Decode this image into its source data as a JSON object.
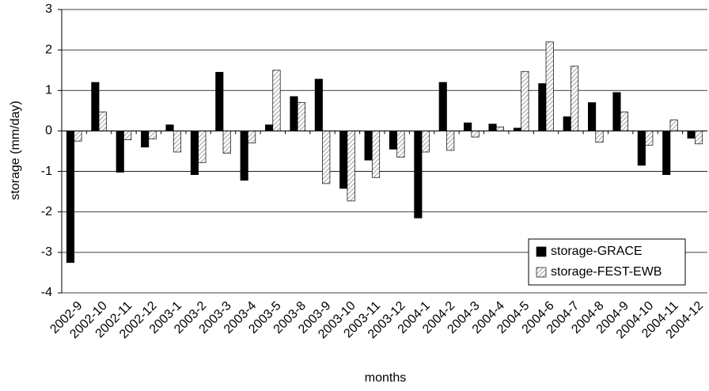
{
  "chart_data": {
    "type": "bar",
    "x_label": "months",
    "y_label": "storage (mm/day)",
    "categories": [
      "2002-9",
      "2002-10",
      "2002-11",
      "2002-12",
      "2003-1",
      "2003-2",
      "2003-3",
      "2003-4",
      "2003-5",
      "2003-8",
      "2003-9",
      "2003-10",
      "2003-11",
      "2003-12",
      "2004-1",
      "2004-2",
      "2004-3",
      "2004-4",
      "2004-5",
      "2004-6",
      "2004-7",
      "2004-8",
      "2004-9",
      "2004-10",
      "2004-11",
      "2004-12"
    ],
    "series": [
      {
        "name": "storage-GRACE",
        "color": "#000000",
        "hatch": false,
        "values": [
          -3.25,
          1.2,
          -1.02,
          -0.4,
          0.15,
          -1.08,
          1.45,
          -1.22,
          0.15,
          0.85,
          1.28,
          -1.42,
          -0.72,
          -0.45,
          -2.15,
          1.2,
          0.2,
          0.17,
          0.07,
          1.17,
          0.35,
          0.7,
          0.95,
          -0.85,
          -1.08,
          -0.18
        ]
      },
      {
        "name": "storage-FEST-EWB",
        "color": "#808080",
        "hatch": true,
        "values": [
          -0.25,
          0.47,
          -0.22,
          -0.2,
          -0.52,
          -0.78,
          -0.55,
          -0.3,
          1.5,
          0.7,
          -1.3,
          -1.73,
          -1.15,
          -0.65,
          -0.52,
          -0.48,
          -0.15,
          0.1,
          1.47,
          2.2,
          1.6,
          -0.28,
          0.47,
          -0.35,
          0.27,
          -0.32
        ]
      }
    ],
    "ylim": [
      -4,
      3
    ],
    "yticks": [
      -4,
      -3,
      -2,
      -1,
      0,
      1,
      2,
      3
    ],
    "grid": true,
    "legend": "lower right"
  }
}
